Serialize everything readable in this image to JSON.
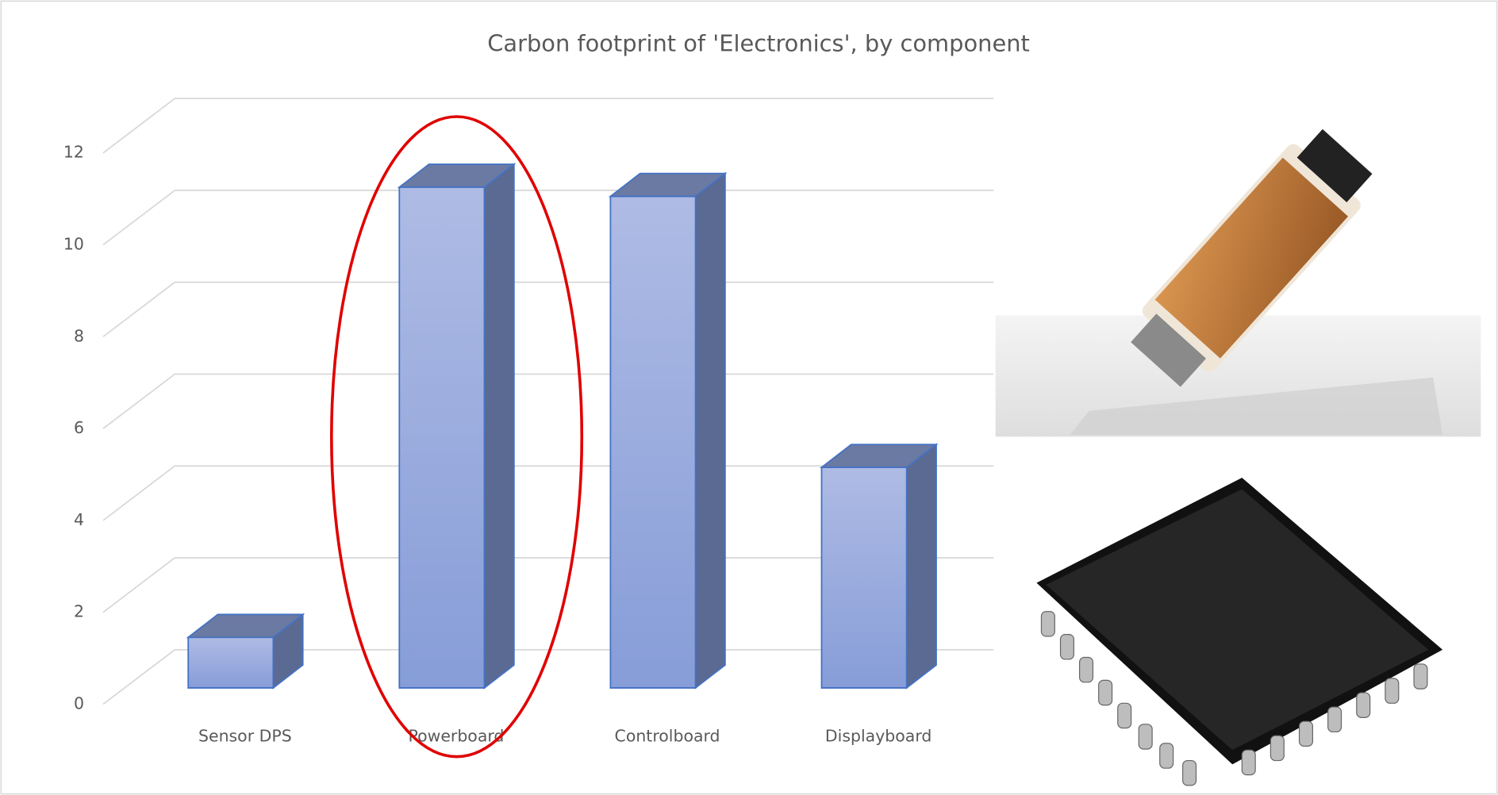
{
  "chart_data": {
    "type": "bar3d",
    "title": "Carbon footprint of 'Electronics', by component",
    "categories": [
      "Sensor DPS",
      "Powerboard",
      "Controlboard",
      "Displayboard"
    ],
    "values": [
      1.1,
      10.9,
      10.7,
      4.8
    ],
    "color": "#8fa3da",
    "ylim": [
      0,
      12
    ],
    "yticks": [
      0,
      2,
      4,
      6,
      8,
      10,
      12
    ],
    "grid": true
  }
}
